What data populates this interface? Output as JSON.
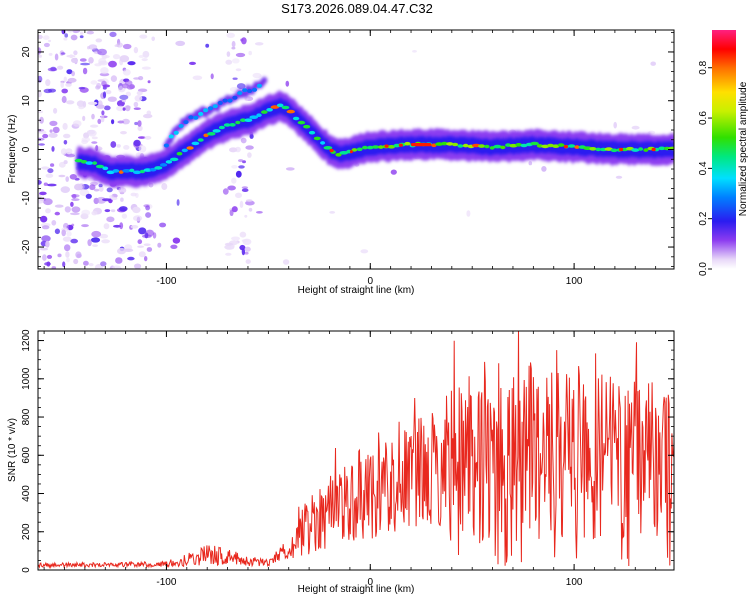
{
  "title": "S173.2026.089.04.47.C32",
  "chart_data": [
    {
      "type": "heatmap",
      "name": "spectrogram",
      "xlabel": "Height of straight line (km)",
      "ylabel": "Frequency (Hz)",
      "xlim": [
        -163,
        149
      ],
      "ylim": [
        -24.5,
        24.5
      ],
      "xticks": [
        -100,
        0,
        100
      ],
      "yticks": [
        -20,
        -10,
        0,
        10,
        20
      ],
      "colorbar": {
        "label": "Normalized spectral amplitude",
        "range": [
          0.0,
          0.95
        ],
        "ticks": [
          0.0,
          0.2,
          0.4,
          0.6,
          0.8
        ]
      },
      "ridge": {
        "x": [
          -143,
          -135,
          -128,
          -118,
          -110,
          -100,
          -90,
          -80,
          -70,
          -60,
          -50,
          -44,
          -40,
          -35,
          -30,
          -25,
          -20,
          -15,
          -10,
          0,
          20,
          40,
          60,
          80,
          100,
          120,
          140,
          149
        ],
        "freq": [
          -2.5,
          -3,
          -4.5,
          -4.5,
          -4.5,
          -3,
          0,
          3,
          5,
          6,
          8,
          9,
          8,
          6,
          4,
          2,
          0,
          -1,
          -0.5,
          0.5,
          1,
          1,
          0.5,
          1,
          0.5,
          0,
          0,
          0
        ]
      },
      "secondary_track": {
        "x": [
          -100,
          -95,
          -90,
          -85,
          -80,
          -75,
          -70,
          -65,
          -60,
          -55,
          -52
        ],
        "freq": [
          1,
          4,
          6,
          7,
          8,
          9,
          10,
          11,
          12,
          13,
          14
        ]
      }
    },
    {
      "type": "line",
      "name": "snr",
      "xlabel": "Height of straight line (km)",
      "ylabel": "SNR (10 * v/v)",
      "xlim": [
        -163,
        149
      ],
      "ylim": [
        0,
        1250
      ],
      "xticks": [
        -100,
        0,
        100
      ],
      "yticks": [
        0,
        200,
        400,
        600,
        800,
        1000,
        1200
      ],
      "color": "#e8281e",
      "envelope": {
        "x": [
          -163,
          -130,
          -100,
          -90,
          -80,
          -70,
          -60,
          -50,
          -45,
          -40,
          -35,
          -30,
          -20,
          -10,
          0,
          10,
          20,
          30,
          40,
          50,
          60,
          70,
          80,
          90,
          100,
          110,
          120,
          130,
          140,
          149
        ],
        "mean": [
          25,
          28,
          30,
          55,
          80,
          70,
          45,
          40,
          80,
          110,
          180,
          240,
          320,
          370,
          410,
          450,
          490,
          520,
          570,
          580,
          560,
          600,
          610,
          600,
          590,
          600,
          590,
          600,
          580,
          580
        ],
        "amplitude": [
          12,
          12,
          15,
          35,
          55,
          45,
          25,
          20,
          35,
          60,
          110,
          160,
          200,
          230,
          250,
          270,
          290,
          300,
          420,
          450,
          440,
          460,
          450,
          440,
          430,
          440,
          430,
          430,
          420,
          400
        ]
      }
    }
  ]
}
